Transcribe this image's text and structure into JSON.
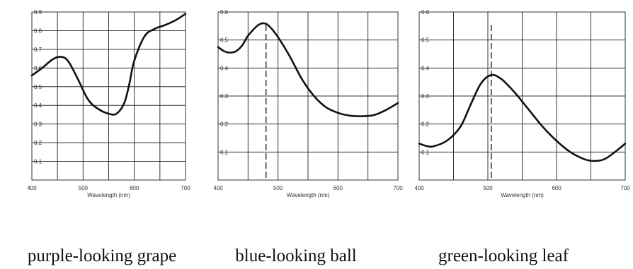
{
  "chart_data": [
    {
      "type": "line",
      "caption": "purple-looking grape",
      "xlabel": "Wavelength (nm)",
      "ylabel": "",
      "xlim": [
        400,
        700
      ],
      "ylim": [
        0,
        0.9
      ],
      "x_ticks": [
        "400",
        "500",
        "600",
        "700"
      ],
      "y_ticks": [
        "0.1",
        "0.2",
        "0.3",
        "0.4",
        "0.5",
        "0.6",
        "0.7",
        "0.8",
        "0.9"
      ],
      "grid": true,
      "series": [
        {
          "x": [
            400,
            420,
            440,
            455,
            470,
            490,
            510,
            530,
            550,
            565,
            580,
            590,
            600,
            620,
            640,
            660,
            680,
            700
          ],
          "values": [
            0.56,
            0.6,
            0.645,
            0.66,
            0.64,
            0.54,
            0.43,
            0.38,
            0.355,
            0.355,
            0.41,
            0.51,
            0.64,
            0.77,
            0.81,
            0.83,
            0.855,
            0.89
          ]
        }
      ]
    },
    {
      "type": "line",
      "caption": "blue-looking ball",
      "xlabel": "Wavelength (nm)",
      "ylabel": "",
      "xlim": [
        400,
        700
      ],
      "ylim": [
        0,
        0.6
      ],
      "x_ticks": [
        "400",
        "500",
        "600",
        "700"
      ],
      "y_ticks": [
        "0.1",
        "0.2",
        "0.3",
        "0.4",
        "0.5",
        "0.6"
      ],
      "grid": true,
      "marker_x": 480,
      "series": [
        {
          "x": [
            400,
            410,
            420,
            430,
            440,
            450,
            465,
            475,
            485,
            500,
            520,
            540,
            560,
            580,
            600,
            620,
            640,
            660,
            680,
            700
          ],
          "values": [
            0.475,
            0.46,
            0.455,
            0.46,
            0.48,
            0.515,
            0.55,
            0.56,
            0.55,
            0.51,
            0.44,
            0.36,
            0.3,
            0.26,
            0.24,
            0.23,
            0.228,
            0.232,
            0.25,
            0.275
          ]
        }
      ]
    },
    {
      "type": "line",
      "caption": "green-looking leaf",
      "xlabel": "Wavelength (nm)",
      "ylabel": "",
      "xlim": [
        400,
        700
      ],
      "ylim": [
        0,
        0.6
      ],
      "x_ticks": [
        "400",
        "500",
        "600",
        "700"
      ],
      "y_ticks": [
        "0.1",
        "0.2",
        "0.3",
        "0.4",
        "0.5",
        "0.6"
      ],
      "grid": true,
      "marker_x": 505,
      "series": [
        {
          "x": [
            400,
            410,
            420,
            440,
            460,
            475,
            490,
            505,
            520,
            540,
            560,
            580,
            600,
            620,
            640,
            655,
            670,
            685,
            700
          ],
          "values": [
            0.13,
            0.122,
            0.12,
            0.14,
            0.19,
            0.27,
            0.345,
            0.375,
            0.36,
            0.31,
            0.25,
            0.19,
            0.14,
            0.1,
            0.075,
            0.068,
            0.075,
            0.1,
            0.13
          ]
        }
      ]
    }
  ]
}
